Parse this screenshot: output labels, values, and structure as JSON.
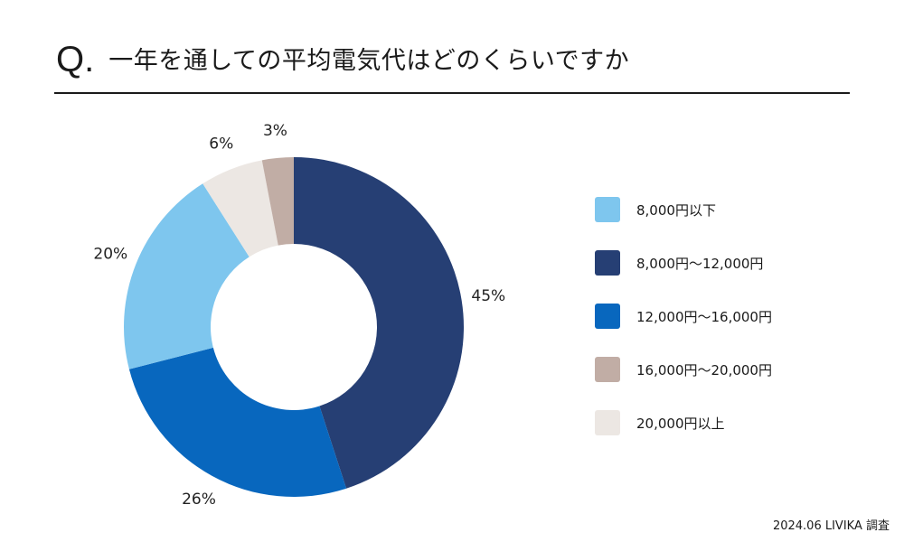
{
  "header": {
    "q_mark": "Q.",
    "question": "一年を通しての平均電気代はどのくらいですか"
  },
  "chart_data": {
    "type": "pie",
    "donut": true,
    "title": "",
    "start": "top",
    "direction": "clockwise",
    "legend_position": "right",
    "slices": [
      {
        "label": "8,000円〜12,000円",
        "value": 45,
        "display": "45%",
        "color": "#263F74"
      },
      {
        "label": "12,000円〜16,000円",
        "value": 26,
        "display": "26%",
        "color": "#0867BE"
      },
      {
        "label": "8,000円以下",
        "value": 20,
        "display": "20%",
        "color": "#7EC6EE"
      },
      {
        "label": "20,000円以上",
        "value": 6,
        "display": "6%",
        "color": "#ECE7E3"
      },
      {
        "label": "16,000円〜20,000円",
        "value": 3,
        "display": "3%",
        "color": "#C1ADA5"
      }
    ]
  },
  "legend": {
    "items": [
      {
        "label": "8,000円以下",
        "color": "#7EC6EE"
      },
      {
        "label": "8,000円〜12,000円",
        "color": "#263F74"
      },
      {
        "label": "12,000円〜16,000円",
        "color": "#0867BE"
      },
      {
        "label": "16,000円〜20,000円",
        "color": "#C1ADA5"
      },
      {
        "label": "20,000円以上",
        "color": "#ECE7E3"
      }
    ]
  },
  "footnote": "2024.06 LIVIKA 調査"
}
